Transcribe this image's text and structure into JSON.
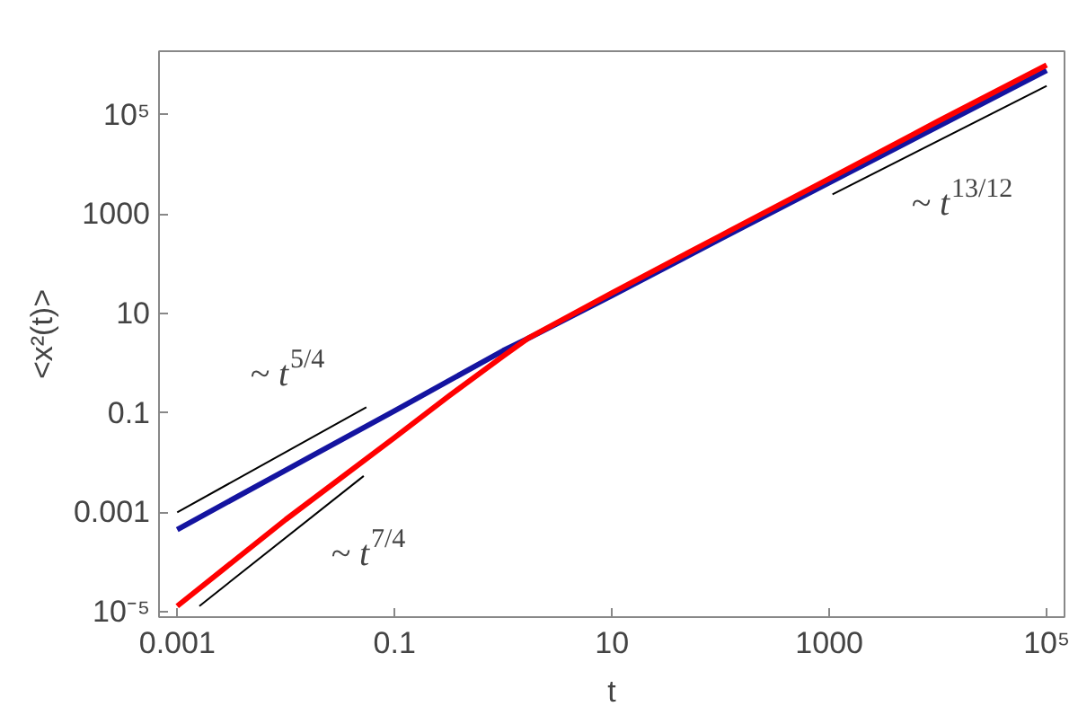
{
  "chart_data": {
    "type": "line",
    "xlabel": "t",
    "ylabel": "<x²(t)>",
    "log": "xy",
    "grid": false,
    "line_style": "solid",
    "marker": "none",
    "xlim": [
      0.00068,
      146000
    ],
    "ylim": [
      7.8e-06,
      1900000.0
    ],
    "xticks": [
      0.001,
      0.1,
      10,
      1000,
      {
        "value": 100000,
        "label": "10⁵"
      }
    ],
    "yticks": [
      {
        "value": 1e-05,
        "label": "10⁻⁵"
      },
      0.001,
      0.1,
      10,
      1000,
      {
        "value": 100000,
        "label": "10⁵"
      }
    ],
    "series": [
      {
        "color": "#1414a0",
        "x": [
          0.001,
          0.01,
          0.1,
          1,
          1.66,
          10,
          100,
          1000,
          10000,
          100000
        ],
        "values": [
          0.00045,
          0.0071,
          0.11,
          1.8,
          3.1,
          23,
          320,
          4300,
          58000,
          780000
        ]
      },
      {
        "color": "#ff0000",
        "x": [
          0.001,
          0.01,
          0.1,
          0.316,
          1,
          1.66,
          10,
          100,
          1000,
          10000,
          100000
        ],
        "values": [
          1.3e-05,
          0.00072,
          0.032,
          0.22,
          1.4,
          3.1,
          26,
          370,
          5200,
          74000,
          1000000
        ]
      },
      {
        "color": "#000000",
        "x": [
          0.001,
          0.055
        ],
        "values": [
          0.001,
          0.13
        ]
      },
      {
        "color": "#000000",
        "x": [
          0.0016,
          0.052
        ],
        "values": [
          1.3e-05,
          0.0054
        ]
      },
      {
        "color": "#000000",
        "x": [
          1070,
          100000
        ],
        "values": [
          2500,
          380000
        ]
      }
    ],
    "annotations": [
      "~ t$^{5/4}$",
      "~ t$^{7/4}$",
      "~ t$^{13/12}$"
    ]
  }
}
